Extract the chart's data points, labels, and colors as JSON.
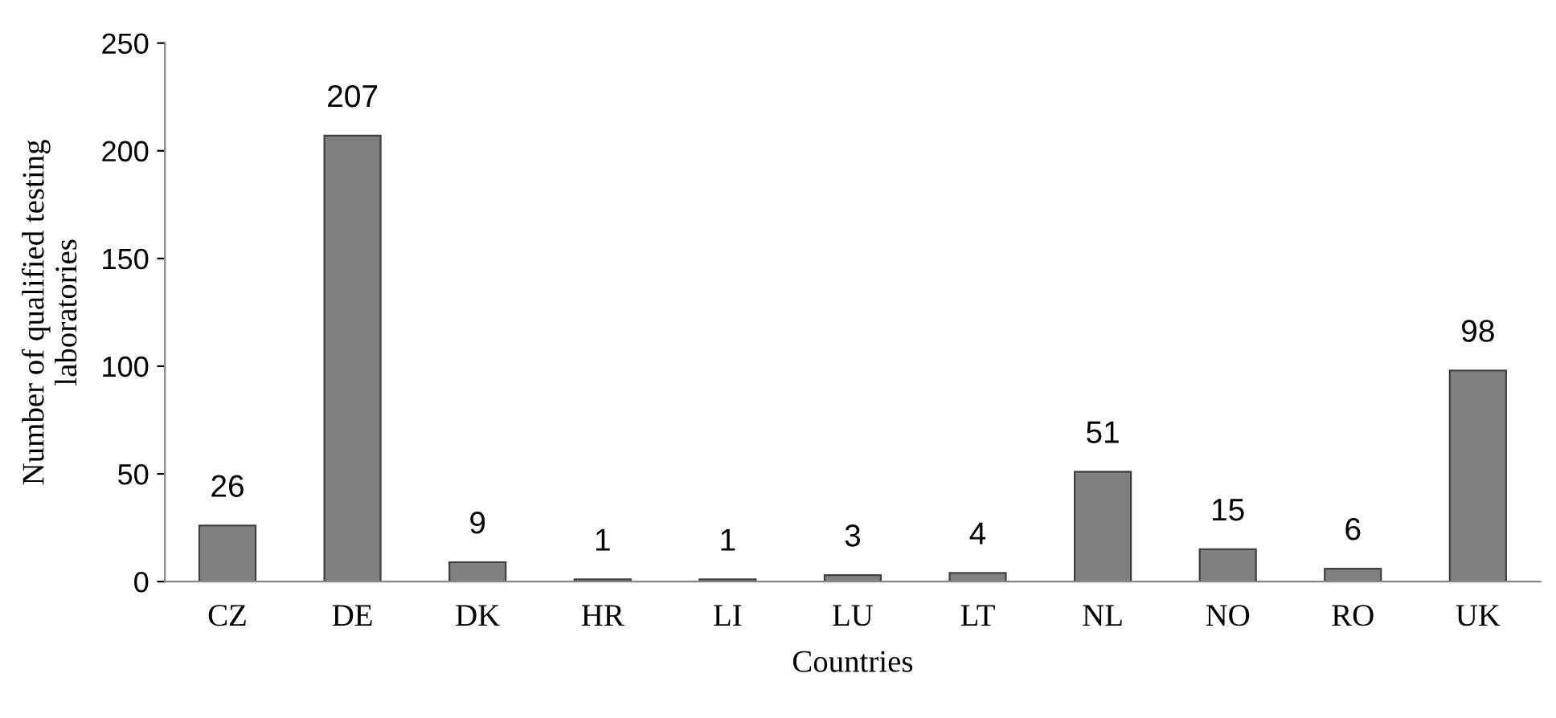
{
  "chart_data": {
    "type": "bar",
    "categories": [
      "CZ",
      "DE",
      "DK",
      "HR",
      "LI",
      "LU",
      "LT",
      "NL",
      "NO",
      "RO",
      "UK"
    ],
    "values": [
      26,
      207,
      9,
      1,
      1,
      3,
      4,
      51,
      15,
      6,
      98
    ],
    "color": "#808080",
    "xlabel": "Countries",
    "ylabel": "Number of qualified testing\nlaboratories",
    "ylim": [
      0,
      250
    ],
    "yticks": [
      0,
      50,
      100,
      150,
      200,
      250
    ],
    "data_labels": true,
    "grid": false,
    "legend": false
  }
}
